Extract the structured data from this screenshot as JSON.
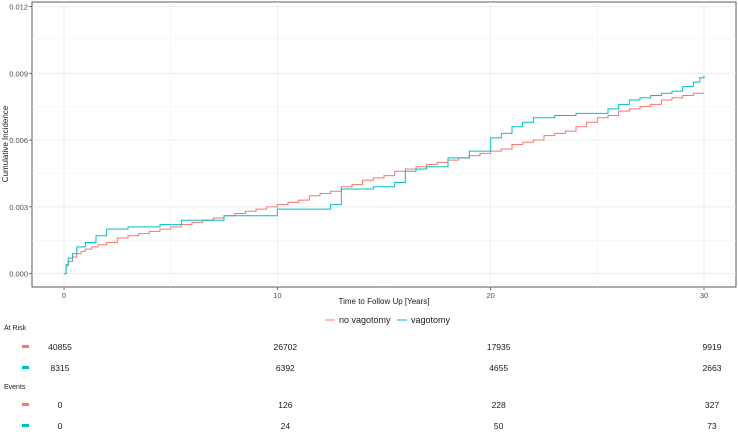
{
  "chart_data": {
    "type": "line",
    "step": true,
    "xlabel": "Time to Follow Up [Years]",
    "ylabel": "Cumulative Incidence",
    "xlim": [
      -1.5,
      31.5
    ],
    "ylim": [
      -0.0006,
      0.0122
    ],
    "x_ticks": [
      0,
      10,
      20,
      30
    ],
    "x_tick_labels": [
      "0",
      "10",
      "20",
      "30"
    ],
    "y_ticks": [
      0.0,
      0.003,
      0.006,
      0.009,
      0.012
    ],
    "y_tick_labels": [
      "0.000",
      "0.003",
      "0.006",
      "0.009",
      "0.012"
    ],
    "grid": true,
    "legend_position": "bottom",
    "series": [
      {
        "name": "no vagotomy",
        "color": "#F8766D",
        "x": [
          0,
          0.1,
          0.2,
          0.4,
          0.6,
          0.8,
          1.0,
          1.3,
          1.6,
          2.0,
          2.5,
          3.0,
          3.5,
          4.0,
          4.5,
          5.0,
          5.5,
          6.0,
          6.5,
          7.0,
          7.5,
          8.0,
          8.5,
          9.0,
          9.5,
          10.0,
          10.5,
          11.0,
          11.5,
          12.0,
          12.5,
          13.0,
          13.5,
          14.0,
          14.5,
          15.0,
          15.5,
          16.0,
          16.5,
          17.0,
          17.5,
          18.0,
          18.5,
          19.0,
          19.5,
          20.0,
          20.5,
          21.0,
          21.5,
          22.0,
          22.5,
          23.0,
          23.5,
          24.0,
          24.5,
          25.0,
          25.5,
          26.0,
          26.5,
          27.0,
          27.5,
          28.0,
          28.5,
          29.0,
          29.5,
          30.0
        ],
        "values": [
          0.0,
          0.00035,
          0.00055,
          0.00075,
          0.0009,
          0.001,
          0.0011,
          0.0012,
          0.0013,
          0.0014,
          0.0016,
          0.0017,
          0.0018,
          0.0019,
          0.002,
          0.0021,
          0.0022,
          0.0023,
          0.0024,
          0.0025,
          0.0026,
          0.0027,
          0.0028,
          0.0029,
          0.003,
          0.0031,
          0.0032,
          0.0033,
          0.0035,
          0.0036,
          0.0037,
          0.0039,
          0.004,
          0.0042,
          0.0043,
          0.0044,
          0.0046,
          0.0047,
          0.0048,
          0.0049,
          0.005,
          0.0051,
          0.0052,
          0.0053,
          0.0054,
          0.0055,
          0.0056,
          0.0058,
          0.0059,
          0.006,
          0.0062,
          0.0063,
          0.0064,
          0.0066,
          0.0068,
          0.007,
          0.0071,
          0.0073,
          0.0074,
          0.0075,
          0.0076,
          0.0078,
          0.0079,
          0.008,
          0.0081,
          0.0081
        ]
      },
      {
        "name": "vagotomy",
        "color": "#00BFC4",
        "x": [
          0,
          0.1,
          0.2,
          0.4,
          0.6,
          1.0,
          1.5,
          2.0,
          3.0,
          4.5,
          5.5,
          7.5,
          10.0,
          12.5,
          13.0,
          14.5,
          15.5,
          16.0,
          16.5,
          17.0,
          18.0,
          19.0,
          20.0,
          20.5,
          21.0,
          21.5,
          22.0,
          23.0,
          24.0,
          25.0,
          25.5,
          26.0,
          26.5,
          27.0,
          27.5,
          28.0,
          28.5,
          29.0,
          29.5,
          29.8,
          30.0
        ],
        "values": [
          0.0,
          0.0004,
          0.0007,
          0.0009,
          0.0012,
          0.0014,
          0.0017,
          0.002,
          0.0021,
          0.0022,
          0.0024,
          0.0026,
          0.0029,
          0.0031,
          0.0038,
          0.0039,
          0.0041,
          0.0046,
          0.0047,
          0.0048,
          0.0052,
          0.0055,
          0.0061,
          0.0063,
          0.0066,
          0.0068,
          0.007,
          0.0071,
          0.0072,
          0.0072,
          0.0074,
          0.0076,
          0.0078,
          0.0079,
          0.008,
          0.0081,
          0.0082,
          0.0084,
          0.0086,
          0.0088,
          0.0089
        ]
      }
    ]
  },
  "risk_table": {
    "at_risk_title": "At Risk",
    "events_title": "Events",
    "at_risk": [
      {
        "color": "#F8766D",
        "values": [
          "40855",
          "26702",
          "17935",
          "9919"
        ]
      },
      {
        "color": "#00BFC4",
        "values": [
          "8315",
          "6392",
          "4655",
          "2663"
        ]
      }
    ],
    "events": [
      {
        "color": "#F8766D",
        "values": [
          "0",
          "126",
          "228",
          "327"
        ]
      },
      {
        "color": "#00BFC4",
        "values": [
          "0",
          "24",
          "50",
          "73"
        ]
      }
    ]
  }
}
